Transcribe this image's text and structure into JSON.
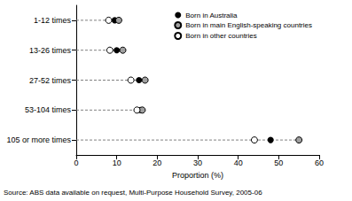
{
  "chart_data": {
    "type": "dot",
    "xlabel": "Proportion (%)",
    "note": "Source: ABS data available on request, Multi-Purpose Household Survey, 2005-06",
    "categories": [
      "1-12 times",
      "13-26 times",
      "27-52 times",
      "53-104 times",
      "105 or more times"
    ],
    "series": [
      {
        "name": "Born in Australia",
        "color": "#000000",
        "marker": "filled",
        "values": [
          9.5,
          10,
          15.5,
          15.8,
          48
        ]
      },
      {
        "name": "Born in main English-speaking countries",
        "color": "#a0a0a0",
        "marker": "shaded",
        "values": [
          10.5,
          11.5,
          17,
          16.3,
          55
        ]
      },
      {
        "name": "Born in other countries",
        "color": "#ffffff",
        "marker": "open",
        "values": [
          8,
          8.3,
          13.5,
          15,
          44
        ]
      }
    ],
    "xlim": [
      0,
      60
    ],
    "xticks": [
      0,
      10,
      20,
      30,
      40,
      50,
      60
    ],
    "grid": false,
    "legend": "upper right",
    "line_style": "dashed"
  }
}
